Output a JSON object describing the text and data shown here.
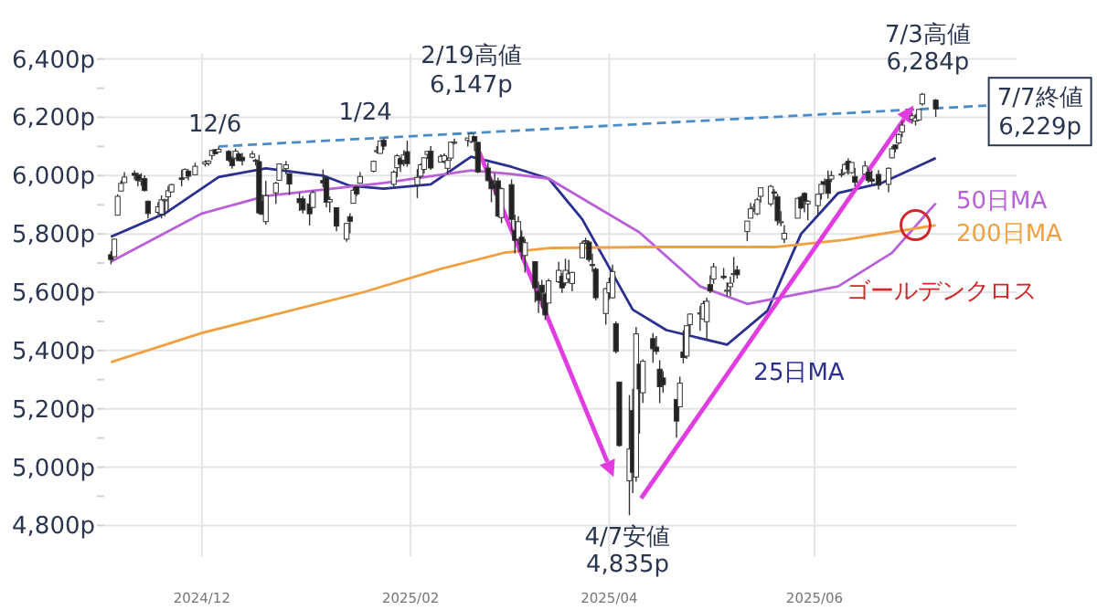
{
  "chart_data": {
    "type": "candlestick",
    "x": [
      "2024-11-04",
      "2024-11-05",
      "2024-11-06",
      "2024-11-07",
      "2024-11-08",
      "2024-11-11",
      "2024-11-12",
      "2024-11-13",
      "2024-11-14",
      "2024-11-15",
      "2024-11-18",
      "2024-11-19",
      "2024-11-20",
      "2024-11-21",
      "2024-11-22",
      "2024-11-25",
      "2024-11-26",
      "2024-11-27",
      "2024-11-29",
      "2024-12-02",
      "2024-12-03",
      "2024-12-04",
      "2024-12-05",
      "2024-12-06",
      "2024-12-09",
      "2024-12-10",
      "2024-12-11",
      "2024-12-12",
      "2024-12-13",
      "2024-12-16",
      "2024-12-17",
      "2024-12-18",
      "2024-12-19",
      "2024-12-20",
      "2024-12-23",
      "2024-12-24",
      "2024-12-26",
      "2024-12-27",
      "2024-12-30",
      "2024-12-31",
      "2025-01-02",
      "2025-01-03",
      "2025-01-06",
      "2025-01-07",
      "2025-01-08",
      "2025-01-10",
      "2025-01-13",
      "2025-01-14",
      "2025-01-15",
      "2025-01-16",
      "2025-01-17",
      "2025-01-21",
      "2025-01-22",
      "2025-01-23",
      "2025-01-24",
      "2025-01-27",
      "2025-01-28",
      "2025-01-29",
      "2025-01-30",
      "2025-01-31",
      "2025-02-03",
      "2025-02-04",
      "2025-02-05",
      "2025-02-06",
      "2025-02-07",
      "2025-02-10",
      "2025-02-11",
      "2025-02-12",
      "2025-02-13",
      "2025-02-14",
      "2025-02-18",
      "2025-02-19",
      "2025-02-20",
      "2025-02-21",
      "2025-02-24",
      "2025-02-25",
      "2025-02-26",
      "2025-02-27",
      "2025-02-28",
      "2025-03-03",
      "2025-03-04",
      "2025-03-05",
      "2025-03-06",
      "2025-03-07",
      "2025-03-10",
      "2025-03-11",
      "2025-03-12",
      "2025-03-13",
      "2025-03-14",
      "2025-03-17",
      "2025-03-18",
      "2025-03-19",
      "2025-03-20",
      "2025-03-21",
      "2025-03-24",
      "2025-03-25",
      "2025-03-26",
      "2025-03-27",
      "2025-03-28",
      "2025-03-31",
      "2025-04-01",
      "2025-04-02",
      "2025-04-03",
      "2025-04-04",
      "2025-04-07",
      "2025-04-08",
      "2025-04-09",
      "2025-04-10",
      "2025-04-11",
      "2025-04-14",
      "2025-04-15",
      "2025-04-16",
      "2025-04-17",
      "2025-04-21",
      "2025-04-22",
      "2025-04-23",
      "2025-04-24",
      "2025-04-25",
      "2025-04-28",
      "2025-04-29",
      "2025-04-30",
      "2025-05-01",
      "2025-05-02",
      "2025-05-05",
      "2025-05-06",
      "2025-05-07",
      "2025-05-08",
      "2025-05-09",
      "2025-05-12",
      "2025-05-13",
      "2025-05-14",
      "2025-05-15",
      "2025-05-16",
      "2025-05-19",
      "2025-05-20",
      "2025-05-21",
      "2025-05-22",
      "2025-05-23",
      "2025-05-27",
      "2025-05-28",
      "2025-05-29",
      "2025-05-30",
      "2025-06-02",
      "2025-06-03",
      "2025-06-04",
      "2025-06-05",
      "2025-06-06",
      "2025-06-09",
      "2025-06-10",
      "2025-06-11",
      "2025-06-12",
      "2025-06-13",
      "2025-06-16",
      "2025-06-17",
      "2025-06-18",
      "2025-06-20",
      "2025-06-23",
      "2025-06-24",
      "2025-06-25",
      "2025-06-26",
      "2025-06-27",
      "2025-06-30",
      "2025-07-01",
      "2025-07-02",
      "2025-07-03",
      "2025-07-07"
    ],
    "ohlc": [
      [
        5729,
        5741,
        5696,
        5712
      ],
      [
        5722,
        5783,
        5722,
        5782
      ],
      [
        5864,
        5936,
        5864,
        5929
      ],
      [
        5947,
        5983,
        5947,
        5973
      ],
      [
        5976,
        6012,
        5976,
        5995
      ],
      [
        6008,
        6018,
        5986,
        6001
      ],
      [
        6003,
        6010,
        5963,
        5983
      ],
      [
        5985,
        6008,
        5965,
        5985
      ],
      [
        5990,
        6001,
        5945,
        5949
      ],
      [
        5912,
        5915,
        5853,
        5870
      ],
      [
        5874,
        5909,
        5866,
        5893
      ],
      [
        5868,
        5932,
        5853,
        5917
      ],
      [
        5917,
        5921,
        5861,
        5917
      ],
      [
        5927,
        5965,
        5875,
        5948
      ],
      [
        5944,
        5972,
        5943,
        5969
      ],
      [
        5992,
        6020,
        5963,
        5987
      ],
      [
        5992,
        6025,
        5992,
        6021
      ],
      [
        6015,
        6021,
        5984,
        5998
      ],
      [
        6003,
        6044,
        6003,
        6032
      ],
      [
        6040,
        6053,
        6031,
        6047
      ],
      [
        6042,
        6053,
        6034,
        6050
      ],
      [
        6069,
        6088,
        6054,
        6086
      ],
      [
        6089,
        6090,
        6072,
        6075
      ],
      [
        6081,
        6100,
        6079,
        6090
      ],
      [
        6083,
        6088,
        6047,
        6053
      ],
      [
        6058,
        6066,
        6024,
        6034
      ],
      [
        6060,
        6093,
        6057,
        6084
      ],
      [
        6074,
        6079,
        6051,
        6051
      ],
      [
        6063,
        6078,
        6035,
        6051
      ],
      [
        6063,
        6085,
        6059,
        6074
      ],
      [
        6053,
        6058,
        6035,
        6051
      ],
      [
        6048,
        6071,
        5867,
        5872
      ],
      [
        5913,
        5935,
        5866,
        5867
      ],
      [
        5842,
        5982,
        5832,
        5931
      ],
      [
        5941,
        5979,
        5903,
        5974
      ],
      [
        5984,
        6041,
        5982,
        6040
      ],
      [
        6024,
        6050,
        6004,
        6037
      ],
      [
        6007,
        6007,
        5933,
        5971
      ],
      [
        5921,
        5941,
        5879,
        5907
      ],
      [
        5920,
        5930,
        5870,
        5882
      ],
      [
        5903,
        5936,
        5829,
        5869
      ],
      [
        5891,
        5949,
        5888,
        5942
      ],
      [
        5983,
        6021,
        5960,
        5975
      ],
      [
        5993,
        6000,
        5891,
        5909
      ],
      [
        5910,
        5928,
        5874,
        5918
      ],
      [
        5890,
        5891,
        5809,
        5827
      ],
      [
        5782,
        5838,
        5773,
        5836
      ],
      [
        5859,
        5871,
        5802,
        5843
      ],
      [
        5905,
        5960,
        5905,
        5950
      ],
      [
        5962,
        5965,
        5930,
        5937
      ],
      [
        5974,
        6012,
        5974,
        5997
      ],
      [
        6015,
        6052,
        6011,
        6049
      ],
      [
        6082,
        6101,
        6076,
        6086
      ],
      [
        6076,
        6119,
        6075,
        6119
      ],
      [
        6121,
        6128,
        6088,
        6101
      ],
      [
        5970,
        6018,
        5962,
        6012
      ],
      [
        6027,
        6074,
        5994,
        6068
      ],
      [
        6058,
        6063,
        6013,
        6039
      ],
      [
        6053,
        6087,
        6032,
        6071
      ],
      [
        6082,
        6120,
        6030,
        6041
      ],
      [
        5969,
        6022,
        5923,
        5994
      ],
      [
        5998,
        6042,
        5990,
        6037
      ],
      [
        6021,
        6062,
        6007,
        6061
      ],
      [
        6073,
        6084,
        6057,
        6083
      ],
      [
        6084,
        6101,
        6020,
        6026
      ],
      [
        6046,
        6073,
        6046,
        6066
      ],
      [
        6049,
        6076,
        6042,
        6068
      ],
      [
        6025,
        6063,
        6004,
        6052
      ],
      [
        6060,
        6116,
        6051,
        6115
      ],
      [
        6115,
        6127,
        6107,
        6115
      ],
      [
        6121,
        6129,
        6100,
        6129
      ],
      [
        6117,
        6147,
        6111,
        6144
      ],
      [
        6134,
        6134,
        6084,
        6117
      ],
      [
        6114,
        6115,
        6008,
        6013
      ],
      [
        6026,
        6044,
        5980,
        5983
      ],
      [
        5983,
        5993,
        5909,
        5955
      ],
      [
        5970,
        6009,
        5933,
        5956
      ],
      [
        5982,
        5993,
        5858,
        5861
      ],
      [
        5856,
        5959,
        5837,
        5955
      ],
      [
        5969,
        5987,
        5810,
        5850
      ],
      [
        5812,
        5866,
        5733,
        5778
      ],
      [
        5782,
        5861,
        5762,
        5842
      ],
      [
        5789,
        5812,
        5711,
        5739
      ],
      [
        5726,
        5783,
        5667,
        5770
      ],
      [
        5705,
        5705,
        5565,
        5615
      ],
      [
        5603,
        5636,
        5529,
        5572
      ],
      [
        5624,
        5642,
        5546,
        5599
      ],
      [
        5594,
        5598,
        5505,
        5522
      ],
      [
        5563,
        5646,
        5563,
        5639
      ],
      [
        5636,
        5704,
        5631,
        5675
      ],
      [
        5655,
        5666,
        5598,
        5615
      ],
      [
        5632,
        5715,
        5622,
        5675
      ],
      [
        5646,
        5711,
        5632,
        5663
      ],
      [
        5630,
        5670,
        5603,
        5668
      ],
      [
        5718,
        5776,
        5718,
        5768
      ],
      [
        5775,
        5787,
        5764,
        5777
      ],
      [
        5772,
        5777,
        5704,
        5712
      ],
      [
        5695,
        5732,
        5670,
        5693
      ],
      [
        5679,
        5685,
        5572,
        5581
      ],
      [
        5527,
        5615,
        5489,
        5612
      ],
      [
        5598,
        5650,
        5574,
        5633
      ],
      [
        5581,
        5695,
        5578,
        5671
      ],
      [
        5492,
        5500,
        5390,
        5397
      ],
      [
        5292,
        5293,
        5070,
        5074
      ],
      [
        4953,
        5247,
        4835,
        5062
      ],
      [
        5194,
        5268,
        4911,
        4982
      ],
      [
        4966,
        5481,
        4950,
        5457
      ],
      [
        5353,
        5353,
        5115,
        5268
      ],
      [
        5255,
        5370,
        5220,
        5363
      ],
      [
        5441,
        5460,
        5358,
        5406
      ],
      [
        5412,
        5450,
        5386,
        5397
      ],
      [
        5336,
        5367,
        5220,
        5276
      ],
      [
        5306,
        5329,
        5255,
        5283
      ],
      [
        5232,
        5233,
        5101,
        5158
      ],
      [
        5207,
        5310,
        5207,
        5288
      ],
      [
        5395,
        5469,
        5356,
        5376
      ],
      [
        5381,
        5485,
        5371,
        5485
      ],
      [
        5489,
        5528,
        5455,
        5525
      ],
      [
        5529,
        5553,
        5468,
        5529
      ],
      [
        5508,
        5571,
        5505,
        5561
      ],
      [
        5499,
        5581,
        5434,
        5569
      ],
      [
        5626,
        5658,
        5597,
        5604
      ],
      [
        5645,
        5700,
        5629,
        5687
      ],
      [
        5655,
        5683,
        5643,
        5650
      ],
      [
        5606,
        5634,
        5587,
        5607
      ],
      [
        5619,
        5654,
        5586,
        5631
      ],
      [
        5663,
        5721,
        5633,
        5664
      ],
      [
        5676,
        5691,
        5647,
        5660
      ],
      [
        5808,
        5844,
        5775,
        5844
      ],
      [
        5854,
        5906,
        5854,
        5886
      ],
      [
        5887,
        5905,
        5876,
        5892
      ],
      [
        5869,
        5924,
        5864,
        5917
      ],
      [
        5929,
        5958,
        5907,
        5958
      ],
      [
        5903,
        5968,
        5895,
        5963
      ],
      [
        5944,
        5953,
        5918,
        5940
      ],
      [
        5928,
        5938,
        5830,
        5845
      ],
      [
        5842,
        5878,
        5826,
        5842
      ],
      [
        5782,
        5830,
        5768,
        5802
      ],
      [
        5854,
        5924,
        5854,
        5922
      ],
      [
        5926,
        5931,
        5885,
        5889
      ],
      [
        5939,
        5943,
        5874,
        5912
      ],
      [
        5903,
        5916,
        5847,
        5912
      ],
      [
        5897,
        5937,
        5862,
        5936
      ],
      [
        5938,
        5982,
        5918,
        5970
      ],
      [
        5979,
        5990,
        5966,
        5971
      ],
      [
        5986,
        6017,
        5921,
        5939
      ],
      [
        5988,
        6016,
        5978,
        6000
      ],
      [
        6004,
        6022,
        5994,
        6006
      ],
      [
        6010,
        6044,
        6006,
        6038
      ],
      [
        6049,
        6060,
        6003,
        6022
      ],
      [
        6010,
        6045,
        6006,
        6045
      ],
      [
        5997,
        6027,
        5963,
        5977
      ],
      [
        6005,
        6050,
        6004,
        6033
      ],
      [
        6012,
        6024,
        5975,
        5983
      ],
      [
        5988,
        6018,
        5971,
        5981
      ],
      [
        6004,
        6019,
        5952,
        5967
      ],
      [
        5970,
        6028,
        5943,
        6025
      ],
      [
        6061,
        6101,
        6059,
        6092
      ],
      [
        6105,
        6108,
        6080,
        6092
      ],
      [
        6112,
        6146,
        6107,
        6141
      ],
      [
        6150,
        6187,
        6132,
        6173
      ],
      [
        6193,
        6215,
        6178,
        6205
      ],
      [
        6187,
        6211,
        6172,
        6198
      ],
      [
        6191,
        6228,
        6187,
        6227
      ],
      [
        6246,
        6284,
        6240,
        6279
      ],
      [
        6259,
        6263,
        6201,
        6229
      ]
    ],
    "series": [
      {
        "type": "line",
        "color": "#4a8cc8",
        "line_style": "dashed",
        "x": [
          "2024-12-06",
          "2025-07-22"
        ],
        "values": [
          6100,
          6240
        ]
      },
      {
        "type": "line",
        "name": "25日MA",
        "color": "#2b2f8f",
        "x": [
          "2024-11-04",
          "2024-11-20",
          "2024-12-06",
          "2024-12-20",
          "2025-01-06",
          "2025-01-14",
          "2025-01-24",
          "2025-02-07",
          "2025-02-19",
          "2025-03-03",
          "2025-03-14",
          "2025-03-24",
          "2025-04-08",
          "2025-04-18",
          "2025-05-06",
          "2025-05-18",
          "2025-05-28",
          "2025-06-08",
          "2025-06-21",
          "2025-07-07"
        ],
        "values": [
          5790,
          5870,
          5995,
          6025,
          6000,
          5965,
          5955,
          5970,
          6065,
          6030,
          5990,
          5850,
          5540,
          5470,
          5420,
          5536,
          5800,
          5940,
          5975,
          6060
        ]
      },
      {
        "type": "line",
        "name": "50日MA",
        "color": "#b860d8",
        "x": [
          "2024-11-04",
          "2024-12-01",
          "2024-12-20",
          "2025-01-24",
          "2025-02-19",
          "2025-03-03",
          "2025-03-14",
          "2025-04-10",
          "2025-04-28",
          "2025-05-12",
          "2025-06-08",
          "2025-06-24",
          "2025-07-07"
        ],
        "values": [
          5705,
          5870,
          5930,
          5975,
          6018,
          6005,
          5990,
          5805,
          5620,
          5560,
          5620,
          5735,
          5905
        ]
      },
      {
        "type": "line",
        "name": "200日MA",
        "color": "#f0a040",
        "x": [
          "2024-11-04",
          "2024-12-01",
          "2025-01-18",
          "2025-02-10",
          "2025-03-01",
          "2025-03-15",
          "2025-04-15",
          "2025-05-20",
          "2025-06-10",
          "2025-07-07"
        ],
        "values": [
          5360,
          5460,
          5600,
          5680,
          5736,
          5752,
          5755,
          5755,
          5780,
          5830
        ]
      }
    ],
    "xlim": [
      "2024-11-02",
      "2025-07-31"
    ],
    "xticks": [
      {
        "value": "2024-12-01",
        "label": "2024/12"
      },
      {
        "value": "2025-02-01",
        "label": "2025/02"
      },
      {
        "value": "2025-04-01",
        "label": "2025/04"
      },
      {
        "value": "2025-06-01",
        "label": "2025/06"
      }
    ],
    "ylim": [
      4800,
      6400
    ],
    "yticks": [
      {
        "value": 4800,
        "label": "4,800p"
      },
      {
        "value": 4900,
        "label": null
      },
      {
        "value": 5000,
        "label": "5,000p"
      },
      {
        "value": 5100,
        "label": null
      },
      {
        "value": 5200,
        "label": "5,200p"
      },
      {
        "value": 5300,
        "label": null
      },
      {
        "value": 5400,
        "label": "5,400p"
      },
      {
        "value": 5500,
        "label": null
      },
      {
        "value": 5600,
        "label": "5,600p"
      },
      {
        "value": 5700,
        "label": null
      },
      {
        "value": 5800,
        "label": "5,800p"
      },
      {
        "value": 5900,
        "label": null
      },
      {
        "value": 6000,
        "label": "6,000p"
      },
      {
        "value": 6100,
        "label": null
      },
      {
        "value": 6200,
        "label": "6,200p"
      },
      {
        "value": 6300,
        "label": null
      },
      {
        "value": 6400,
        "label": "6,400p"
      }
    ],
    "grid": true,
    "legend": false,
    "annotations": [
      {
        "text": "12/6",
        "x": "2024-12-06",
        "y": 6100
      },
      {
        "text": "1/24",
        "x": "2025-01-24",
        "y": 6128
      },
      {
        "text": "2/19高値 6,147p",
        "x": "2025-02-19",
        "y": 6147
      },
      {
        "text": "4/7安値 4,835p",
        "x": "2025-04-07",
        "y": 4835
      },
      {
        "text": "7/3高値 6,284p",
        "x": "2025-07-03",
        "y": 6284
      },
      {
        "text": "7/7終値 6,229p",
        "x": "2025-07-07",
        "y": 6229
      },
      {
        "text": "ゴールデンクロス",
        "x": "2025-07-01",
        "y": 5830
      }
    ]
  }
}
